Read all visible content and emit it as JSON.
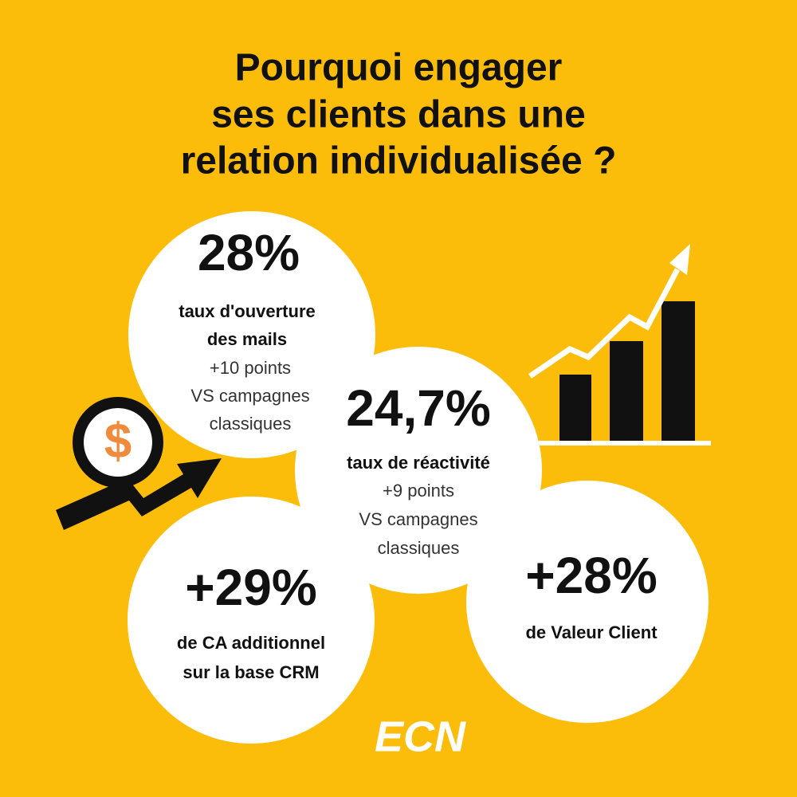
{
  "title": [
    "Pourquoi engager",
    "ses clients dans une",
    "relation individualisée ?"
  ],
  "stats": [
    {
      "value": "28%",
      "label": [
        "taux d'ouverture",
        "des mails"
      ],
      "detail": [
        "+10 points",
        "VS campagnes",
        "classiques"
      ]
    },
    {
      "value": "24,7%",
      "label": [
        "taux de réactivité"
      ],
      "detail": [
        "+9 points",
        "VS campagnes",
        "classiques"
      ]
    },
    {
      "value": "+29%",
      "label": [
        "de CA additionnel",
        "sur la base CRM"
      ],
      "detail": []
    },
    {
      "value": "+28%",
      "label": [
        "de Valeur Client"
      ],
      "detail": []
    }
  ],
  "logo": "ECN"
}
